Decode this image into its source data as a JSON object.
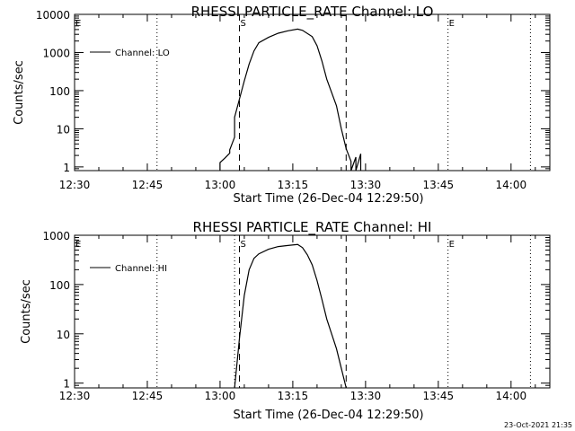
{
  "chart_data": [
    {
      "type": "line",
      "title": "RHESSI PARTICLE_RATE Channel: LO",
      "xlabel": "Start Time (26-Dec-04 12:29:50)",
      "ylabel": "Counts/sec",
      "yscale": "log",
      "xlim": [
        "12:30",
        "14:08"
      ],
      "ylim": [
        0.8,
        10000
      ],
      "x_ticks": [
        "12:30",
        "12:45",
        "13:00",
        "13:15",
        "13:30",
        "13:45",
        "14:00"
      ],
      "y_ticks": [
        "1",
        "10",
        "100",
        "1000",
        "10000"
      ],
      "legend": {
        "position": "top-left",
        "label": "Channel: LO"
      },
      "markers": [
        {
          "label": "E",
          "time": "12:30",
          "style": "dotted"
        },
        {
          "label": "",
          "time": "12:47",
          "style": "dotted"
        },
        {
          "label": "S",
          "time": "13:04",
          "style": "dashed"
        },
        {
          "label": "",
          "time": "13:26",
          "style": "dashed"
        },
        {
          "label": "E",
          "time": "13:47",
          "style": "dotted"
        },
        {
          "label": "",
          "time": "14:04",
          "style": "dotted"
        }
      ],
      "series": [
        {
          "x": [
            "13:00",
            "13:00",
            "13:01",
            "13:02",
            "13:02",
            "13:03",
            "13:03",
            "13:04",
            "13:05",
            "13:06",
            "13:07",
            "13:08",
            "13:10",
            "13:12",
            "13:14",
            "13:16",
            "13:17",
            "13:19",
            "13:20",
            "13:21",
            "13:22",
            "13:24",
            "13:25",
            "13:26",
            "13:27",
            "13:27",
            "13:28",
            "13:28",
            "13:29",
            "13:29"
          ],
          "y": [
            0.8,
            1.3,
            1.7,
            2.3,
            2.8,
            6,
            20,
            60,
            180,
            500,
            1100,
            1800,
            2500,
            3200,
            3700,
            4100,
            3800,
            2600,
            1500,
            600,
            200,
            40,
            10,
            3,
            1.4,
            0.8,
            1.8,
            0.8,
            2.2,
            0.8
          ]
        }
      ]
    },
    {
      "type": "line",
      "title": "RHESSI PARTICLE_RATE Channel: HI",
      "xlabel": "Start Time (26-Dec-04 12:29:50)",
      "ylabel": "Counts/sec",
      "yscale": "log",
      "xlim": [
        "12:30",
        "14:08"
      ],
      "ylim": [
        0.8,
        1000
      ],
      "x_ticks": [
        "12:30",
        "12:45",
        "13:00",
        "13:15",
        "13:30",
        "13:45",
        "14:00"
      ],
      "y_ticks": [
        "1",
        "10",
        "100",
        "1000"
      ],
      "legend": {
        "position": "top-left",
        "label": "Channel: HI"
      },
      "markers": [
        {
          "label": "E",
          "time": "12:30",
          "style": "dotted"
        },
        {
          "label": "",
          "time": "12:47",
          "style": "dotted"
        },
        {
          "label": "",
          "time": "13:03",
          "style": "dotted"
        },
        {
          "label": "S",
          "time": "13:04",
          "style": "dashed"
        },
        {
          "label": "",
          "time": "13:26",
          "style": "dashed"
        },
        {
          "label": "E",
          "time": "13:47",
          "style": "dotted"
        },
        {
          "label": "",
          "time": "14:04",
          "style": "dotted"
        }
      ],
      "series": [
        {
          "x": [
            "13:03",
            "13:04",
            "13:05",
            "13:06",
            "13:07",
            "13:08",
            "13:10",
            "13:12",
            "13:14",
            "13:16",
            "13:17",
            "13:18",
            "13:19",
            "13:20",
            "13:21",
            "13:22",
            "13:24",
            "13:25",
            "13:26"
          ],
          "y": [
            0.8,
            8,
            60,
            200,
            340,
            420,
            520,
            590,
            620,
            650,
            560,
            400,
            250,
            120,
            50,
            20,
            5,
            2,
            0.8
          ]
        }
      ]
    }
  ],
  "footer": {
    "timestamp": "23-Oct-2021 21:35"
  }
}
